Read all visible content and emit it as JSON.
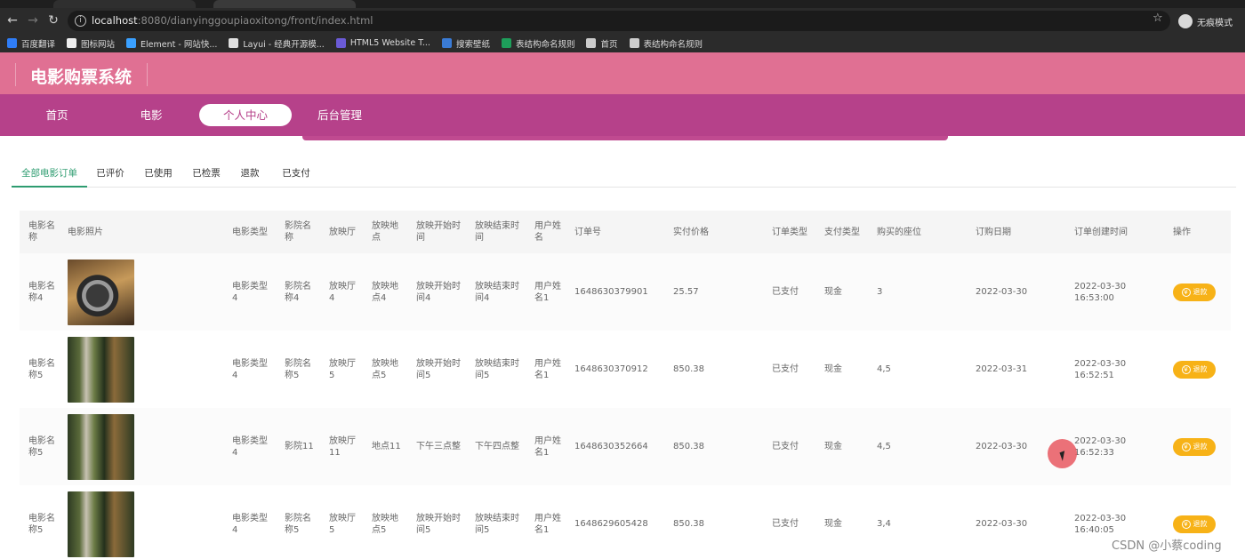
{
  "browser": {
    "url_host": "localhost",
    "url_rest": ":8080/dianyinggoupiaoxitong/front/index.html",
    "profile_label": "无痕模式",
    "bookmarks": [
      {
        "label": "百度翻译",
        "color": "#2f7df6"
      },
      {
        "label": "图标网站",
        "color": "#eeeeee"
      },
      {
        "label": "Element - 网站快...",
        "color": "#3aa0ff"
      },
      {
        "label": "Layui - 经典开源模...",
        "color": "#e0e0e0"
      },
      {
        "label": "HTML5 Website T...",
        "color": "#6b5bd6"
      },
      {
        "label": "搜索壁纸",
        "color": "#3a7bd5"
      },
      {
        "label": "表结构命名规则",
        "color": "#1e9e5a"
      },
      {
        "label": "首页",
        "color": "#cccccc"
      },
      {
        "label": "表结构命名规则",
        "color": "#cccccc"
      }
    ]
  },
  "site": {
    "title": "电影购票系统",
    "nav": [
      "首页",
      "电影",
      "个人中心",
      "后台管理"
    ],
    "nav_active": "个人中心"
  },
  "order_tabs": [
    "全部电影订单",
    "已评价",
    "已使用",
    "已检票",
    "退款",
    "已支付"
  ],
  "table": {
    "headers": [
      "电影名称",
      "电影照片",
      "电影类型",
      "影院名称",
      "放映厅",
      "放映地点",
      "放映开始时间",
      "放映结束时间",
      "用户姓名",
      "订单号",
      "实付价格",
      "订单类型",
      "支付类型",
      "购买的座位",
      "订购日期",
      "订单创建时间",
      "操作"
    ],
    "rows": [
      {
        "name": "电影名称4",
        "photo": "film",
        "type": "电影类型4",
        "cinema": "影院名称4",
        "hall": "放映厅4",
        "place": "放映地点4",
        "start": "放映开始时间4",
        "end": "放映结束时间4",
        "user": "用户姓名1",
        "order_no": "1648630379901",
        "price": "25.57",
        "order_type": "已支付",
        "pay_type": "现金",
        "seat": "3",
        "date": "2022-03-30",
        "created": "2022-03-30 16:53:00",
        "action": "退款"
      },
      {
        "name": "电影名称5",
        "photo": "scene",
        "type": "电影类型4",
        "cinema": "影院名称5",
        "hall": "放映厅5",
        "place": "放映地点5",
        "start": "放映开始时间5",
        "end": "放映结束时间5",
        "user": "用户姓名1",
        "order_no": "1648630370912",
        "price": "850.38",
        "order_type": "已支付",
        "pay_type": "现金",
        "seat": "4,5",
        "date": "2022-03-31",
        "created": "2022-03-30 16:52:51",
        "action": "退款"
      },
      {
        "name": "电影名称5",
        "photo": "scene",
        "type": "电影类型4",
        "cinema": "影院11",
        "hall": "放映厅11",
        "place": "地点11",
        "start": "下午三点整",
        "end": "下午四点整",
        "user": "用户姓名1",
        "order_no": "1648630352664",
        "price": "850.38",
        "order_type": "已支付",
        "pay_type": "现金",
        "seat": "4,5",
        "date": "2022-03-30",
        "created": "2022-03-30 16:52:33",
        "action": "退款"
      },
      {
        "name": "电影名称5",
        "photo": "scene",
        "type": "电影类型4",
        "cinema": "影院名称5",
        "hall": "放映厅5",
        "place": "放映地点5",
        "start": "放映开始时间5",
        "end": "放映结束时间5",
        "user": "用户姓名1",
        "order_no": "1648629605428",
        "price": "850.38",
        "order_type": "已支付",
        "pay_type": "现金",
        "seat": "3,4",
        "date": "2022-03-30",
        "created": "2022-03-30 16:40:05",
        "action": "退款"
      }
    ]
  },
  "watermark": "CSDN @小蔡coding"
}
